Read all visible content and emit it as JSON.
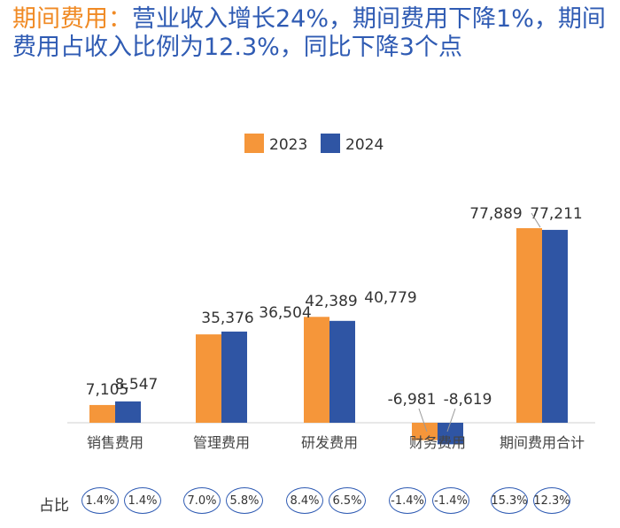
{
  "title": {
    "highlight": "期间费用：",
    "text": "营业收入增长24%，期间费用下降1%，期间费用占收入比例为12.3%，同比下降3个点"
  },
  "colors": {
    "s2023": "#f5963a",
    "s2024": "#2f55a4",
    "title": "#2f5bb3",
    "highlight": "#f08a24"
  },
  "chart_data": {
    "type": "bar",
    "categories": [
      "销售费用",
      "管理费用",
      "研发费用",
      "财务费用",
      "期间费用合计"
    ],
    "series": [
      {
        "name": "2023",
        "values": [
          7105,
          35376,
          42389,
          -6981,
          77889
        ],
        "labels": [
          "7,105",
          "35,376",
          "42,389",
          "-6,981",
          "77,889"
        ]
      },
      {
        "name": "2024",
        "values": [
          8547,
          36504,
          40779,
          -8619,
          77211
        ],
        "labels": [
          "8,547",
          "36,504",
          "40,779",
          "-8,619",
          "77,211"
        ]
      }
    ],
    "legend": "top-center",
    "grid": false
  },
  "ratio": {
    "label": "占比",
    "values": [
      [
        "1.4%",
        "1.4%"
      ],
      [
        "7.0%",
        "5.8%"
      ],
      [
        "8.4%",
        "6.5%"
      ],
      [
        "-1.4%",
        "-1.4%"
      ],
      [
        "15.3%",
        "12.3%"
      ]
    ]
  }
}
